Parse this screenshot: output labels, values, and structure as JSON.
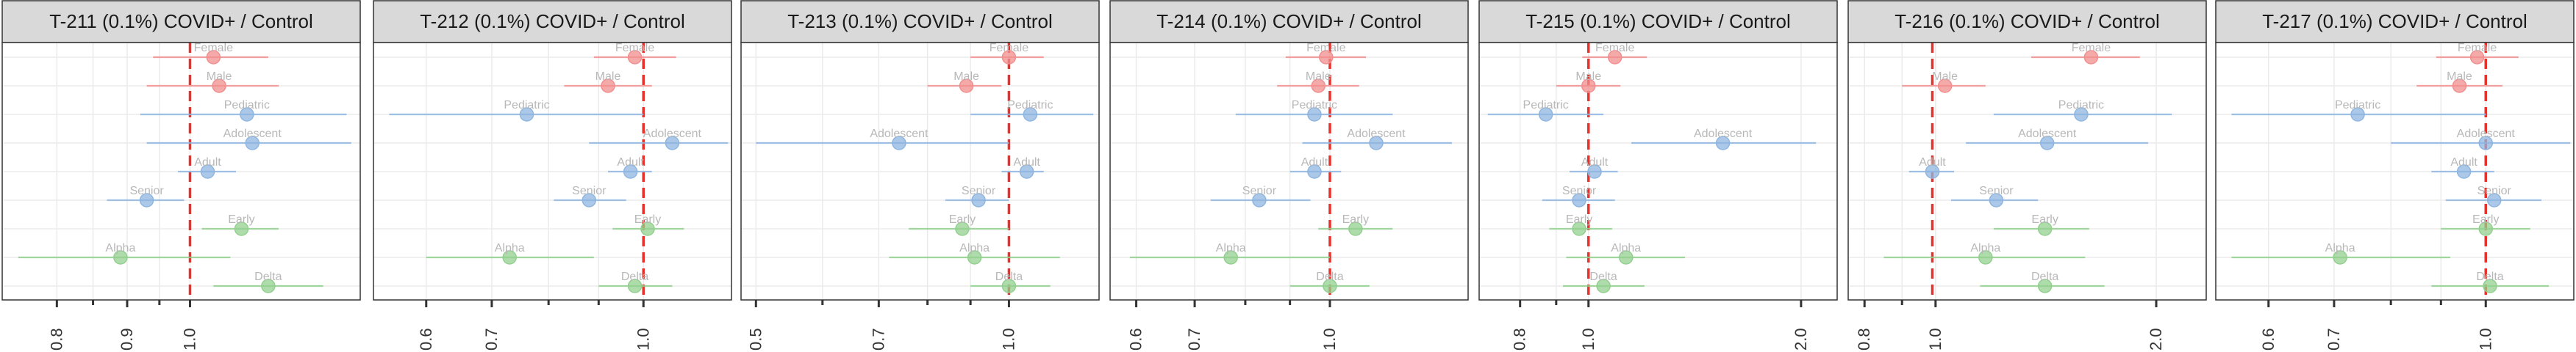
{
  "colors": {
    "Sex": "#f28e8e",
    "AgeGroup": "#8fb6e0",
    "Variant": "#93d08f",
    "strip_fill": "#d9d9d9",
    "reference_line": "#e8312a"
  },
  "chart_data": [
    {
      "type": "forest",
      "title": "T-211 (0.1%) COVID+ / Control",
      "xlim": [
        0.73,
        1.33
      ],
      "ticks": [
        0.8,
        0.9,
        1.0
      ],
      "tick_labels": [
        "0.8",
        "0.9",
        "1.0"
      ],
      "minor_ticks": [
        0.85,
        0.95
      ],
      "reference": 1.0,
      "rows": [
        {
          "label": "Female",
          "group": "Sex",
          "est": 1.04,
          "lo": 0.94,
          "hi": 1.14
        },
        {
          "label": "Male",
          "group": "Sex",
          "est": 1.05,
          "lo": 0.93,
          "hi": 1.16
        },
        {
          "label": "Pediatric",
          "group": "AgeGroup",
          "est": 1.1,
          "lo": 0.92,
          "hi": 1.3
        },
        {
          "label": "Adolescent",
          "group": "AgeGroup",
          "est": 1.11,
          "lo": 0.93,
          "hi": 1.31
        },
        {
          "label": "Adult",
          "group": "AgeGroup",
          "est": 1.03,
          "lo": 0.98,
          "hi": 1.08
        },
        {
          "label": "Senior",
          "group": "AgeGroup",
          "est": 0.93,
          "lo": 0.87,
          "hi": 0.99
        },
        {
          "label": "Early",
          "group": "Variant",
          "est": 1.09,
          "lo": 1.02,
          "hi": 1.16
        },
        {
          "label": "Alpha",
          "group": "Variant",
          "est": 0.89,
          "lo": 0.75,
          "hi": 1.07
        },
        {
          "label": "Delta",
          "group": "Variant",
          "est": 1.14,
          "lo": 1.04,
          "hi": 1.25
        }
      ]
    },
    {
      "type": "forest",
      "title": "T-212 (0.1%) COVID+ / Control",
      "xlim": [
        0.53,
        1.23
      ],
      "ticks": [
        0.6,
        0.7,
        1.0
      ],
      "tick_labels": [
        "0.6",
        "0.7",
        "1.0"
      ],
      "minor_ticks": [
        0.8,
        0.9
      ],
      "reference": 1.0,
      "rows": [
        {
          "label": "Female",
          "group": "Sex",
          "est": 0.98,
          "lo": 0.89,
          "hi": 1.08
        },
        {
          "label": "Male",
          "group": "Sex",
          "est": 0.92,
          "lo": 0.83,
          "hi": 1.02
        },
        {
          "label": "Pediatric",
          "group": "AgeGroup",
          "est": 0.76,
          "lo": 0.55,
          "hi": 1.0
        },
        {
          "label": "Adolescent",
          "group": "AgeGroup",
          "est": 1.07,
          "lo": 0.88,
          "hi": 1.22
        },
        {
          "label": "Adult",
          "group": "AgeGroup",
          "est": 0.97,
          "lo": 0.92,
          "hi": 1.02
        },
        {
          "label": "Senior",
          "group": "AgeGroup",
          "est": 0.88,
          "lo": 0.81,
          "hi": 0.96
        },
        {
          "label": "Early",
          "group": "Variant",
          "est": 1.01,
          "lo": 0.93,
          "hi": 1.1
        },
        {
          "label": "Alpha",
          "group": "Variant",
          "est": 0.73,
          "lo": 0.6,
          "hi": 0.89
        },
        {
          "label": "Delta",
          "group": "Variant",
          "est": 0.98,
          "lo": 0.9,
          "hi": 1.07
        }
      ]
    },
    {
      "type": "forest",
      "title": "T-213 (0.1%) COVID+ / Control",
      "xlim": [
        0.48,
        1.28
      ],
      "ticks": [
        0.5,
        0.7,
        1.0
      ],
      "tick_labels": [
        "0.5",
        "0.7",
        "1.0"
      ],
      "minor_ticks": [
        0.6,
        0.8,
        0.9
      ],
      "reference": 1.0,
      "rows": [
        {
          "label": "Female",
          "group": "Sex",
          "est": 1.0,
          "lo": 0.9,
          "hi": 1.1
        },
        {
          "label": "Male",
          "group": "Sex",
          "est": 0.89,
          "lo": 0.8,
          "hi": 0.98
        },
        {
          "label": "Pediatric",
          "group": "AgeGroup",
          "est": 1.06,
          "lo": 0.9,
          "hi": 1.26
        },
        {
          "label": "Adolescent",
          "group": "AgeGroup",
          "est": 0.74,
          "lo": 0.5,
          "hi": 1.0
        },
        {
          "label": "Adult",
          "group": "AgeGroup",
          "est": 1.05,
          "lo": 0.98,
          "hi": 1.1
        },
        {
          "label": "Senior",
          "group": "AgeGroup",
          "est": 0.92,
          "lo": 0.84,
          "hi": 1.0
        },
        {
          "label": "Early",
          "group": "Variant",
          "est": 0.88,
          "lo": 0.76,
          "hi": 1.0
        },
        {
          "label": "Alpha",
          "group": "Variant",
          "est": 0.91,
          "lo": 0.72,
          "hi": 1.15
        },
        {
          "label": "Delta",
          "group": "Variant",
          "est": 1.0,
          "lo": 0.9,
          "hi": 1.12
        }
      ]
    },
    {
      "type": "forest",
      "title": "T-214 (0.1%) COVID+ / Control",
      "xlim": [
        0.56,
        1.44
      ],
      "ticks": [
        0.6,
        0.7,
        1.0
      ],
      "tick_labels": [
        "0.6",
        "0.7",
        "1.0"
      ],
      "minor_ticks": [
        0.8,
        0.9
      ],
      "reference": 1.0,
      "rows": [
        {
          "label": "Female",
          "group": "Sex",
          "est": 0.99,
          "lo": 0.89,
          "hi": 1.1
        },
        {
          "label": "Male",
          "group": "Sex",
          "est": 0.97,
          "lo": 0.87,
          "hi": 1.08
        },
        {
          "label": "Pediatric",
          "group": "AgeGroup",
          "est": 0.96,
          "lo": 0.78,
          "hi": 1.18
        },
        {
          "label": "Adolescent",
          "group": "AgeGroup",
          "est": 1.13,
          "lo": 0.93,
          "hi": 1.38
        },
        {
          "label": "Adult",
          "group": "AgeGroup",
          "est": 0.96,
          "lo": 0.9,
          "hi": 1.03
        },
        {
          "label": "Senior",
          "group": "AgeGroup",
          "est": 0.83,
          "lo": 0.73,
          "hi": 0.95
        },
        {
          "label": "Early",
          "group": "Variant",
          "est": 1.07,
          "lo": 0.97,
          "hi": 1.18
        },
        {
          "label": "Alpha",
          "group": "Variant",
          "est": 0.77,
          "lo": 0.59,
          "hi": 1.0
        },
        {
          "label": "Delta",
          "group": "Variant",
          "est": 1.0,
          "lo": 0.9,
          "hi": 1.11
        }
      ]
    },
    {
      "type": "forest",
      "title": "T-215 (0.1%) COVID+ / Control",
      "xlim": [
        0.7,
        2.25
      ],
      "ticks": [
        0.8,
        1.0,
        2.0
      ],
      "tick_labels": [
        "0.8",
        "1.0",
        "2.0"
      ],
      "minor_ticks": [
        0.9
      ],
      "reference": 1.0,
      "rows": [
        {
          "label": "Female",
          "group": "Sex",
          "est": 1.09,
          "lo": 0.98,
          "hi": 1.21
        },
        {
          "label": "Male",
          "group": "Sex",
          "est": 1.0,
          "lo": 0.9,
          "hi": 1.11
        },
        {
          "label": "Pediatric",
          "group": "AgeGroup",
          "est": 0.87,
          "lo": 0.72,
          "hi": 1.05
        },
        {
          "label": "Adolescent",
          "group": "AgeGroup",
          "est": 1.55,
          "lo": 1.15,
          "hi": 2.1
        },
        {
          "label": "Adult",
          "group": "AgeGroup",
          "est": 1.02,
          "lo": 0.94,
          "hi": 1.1
        },
        {
          "label": "Senior",
          "group": "AgeGroup",
          "est": 0.97,
          "lo": 0.86,
          "hi": 1.09
        },
        {
          "label": "Early",
          "group": "Variant",
          "est": 0.97,
          "lo": 0.88,
          "hi": 1.08
        },
        {
          "label": "Alpha",
          "group": "Variant",
          "est": 1.13,
          "lo": 0.93,
          "hi": 1.37
        },
        {
          "label": "Delta",
          "group": "Variant",
          "est": 1.05,
          "lo": 0.92,
          "hi": 1.2
        }
      ]
    },
    {
      "type": "forest",
      "title": "T-216 (0.1%) COVID+ / Control",
      "xlim": [
        0.76,
        2.34
      ],
      "ticks": [
        0.8,
        1.0,
        2.0
      ],
      "tick_labels": [
        "0.8",
        "1.0",
        "2.0"
      ],
      "minor_ticks": [
        0.9
      ],
      "reference": 0.99,
      "rows": [
        {
          "label": "Female",
          "group": "Sex",
          "est": 1.63,
          "lo": 1.35,
          "hi": 1.9
        },
        {
          "label": "Male",
          "group": "Sex",
          "est": 1.03,
          "lo": 0.9,
          "hi": 1.17
        },
        {
          "label": "Pediatric",
          "group": "AgeGroup",
          "est": 1.58,
          "lo": 1.2,
          "hi": 2.1
        },
        {
          "label": "Adolescent",
          "group": "AgeGroup",
          "est": 1.42,
          "lo": 1.1,
          "hi": 1.95
        },
        {
          "label": "Adult",
          "group": "AgeGroup",
          "est": 0.99,
          "lo": 0.92,
          "hi": 1.06
        },
        {
          "label": "Senior",
          "group": "AgeGroup",
          "est": 1.21,
          "lo": 1.05,
          "hi": 1.38
        },
        {
          "label": "Early",
          "group": "Variant",
          "est": 1.41,
          "lo": 1.2,
          "hi": 1.62
        },
        {
          "label": "Alpha",
          "group": "Variant",
          "est": 1.17,
          "lo": 0.85,
          "hi": 1.6
        },
        {
          "label": "Delta",
          "group": "Variant",
          "est": 1.41,
          "lo": 1.15,
          "hi": 1.7
        }
      ]
    },
    {
      "type": "forest",
      "title": "T-217 (0.1%) COVID+ / Control",
      "xlim": [
        0.53,
        1.23
      ],
      "ticks": [
        0.6,
        0.7,
        1.0
      ],
      "tick_labels": [
        "0.6",
        "0.7",
        "1.0"
      ],
      "minor_ticks": [
        0.8,
        0.9
      ],
      "reference": 1.0,
      "rows": [
        {
          "label": "Female",
          "group": "Sex",
          "est": 0.98,
          "lo": 0.89,
          "hi": 1.08
        },
        {
          "label": "Male",
          "group": "Sex",
          "est": 0.94,
          "lo": 0.85,
          "hi": 1.04
        },
        {
          "label": "Pediatric",
          "group": "AgeGroup",
          "est": 0.74,
          "lo": 0.55,
          "hi": 1.0
        },
        {
          "label": "Adolescent",
          "group": "AgeGroup",
          "est": 1.0,
          "lo": 0.8,
          "hi": 1.22
        },
        {
          "label": "Adult",
          "group": "AgeGroup",
          "est": 0.95,
          "lo": 0.88,
          "hi": 1.02
        },
        {
          "label": "Senior",
          "group": "AgeGroup",
          "est": 1.02,
          "lo": 0.91,
          "hi": 1.14
        },
        {
          "label": "Early",
          "group": "Variant",
          "est": 1.0,
          "lo": 0.9,
          "hi": 1.11
        },
        {
          "label": "Alpha",
          "group": "Variant",
          "est": 0.71,
          "lo": 0.55,
          "hi": 0.92
        },
        {
          "label": "Delta",
          "group": "Variant",
          "est": 1.01,
          "lo": 0.88,
          "hi": 1.16
        }
      ]
    }
  ]
}
